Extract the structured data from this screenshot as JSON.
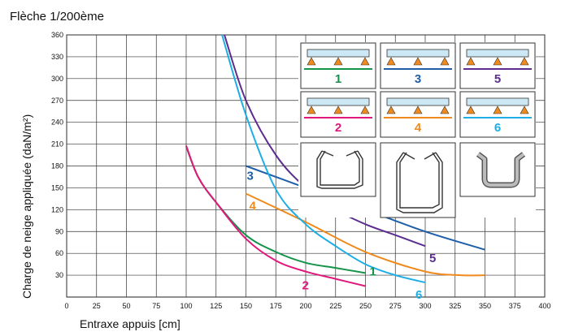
{
  "chart_data": {
    "type": "line",
    "title": "Flèche 1/200ème",
    "xlabel": "Entraxe appuis  [cm]",
    "ylabel": "Charge de neige appliquée  (daN/m²)",
    "xlim": [
      0,
      400
    ],
    "ylim": [
      0,
      360
    ],
    "xticks": [
      "0",
      "25",
      "50",
      "75",
      "100",
      "125",
      "150",
      "175",
      "200",
      "225",
      "250",
      "275",
      "300",
      "325",
      "350",
      "375",
      "400"
    ],
    "yticks": [
      "30",
      "60",
      "90",
      "120",
      "150",
      "180",
      "210",
      "240",
      "270",
      "300",
      "330",
      "360"
    ],
    "grid": true,
    "series": [
      {
        "name": "1",
        "color": "#16934a",
        "x": [
          100,
          110,
          125,
          150,
          175,
          200,
          225,
          250
        ],
        "y": [
          207,
          165,
          130,
          85,
          62,
          47,
          40,
          33
        ]
      },
      {
        "name": "2",
        "color": "#e0187c",
        "x": [
          100,
          110,
          125,
          150,
          175,
          200,
          225,
          250
        ],
        "y": [
          208,
          165,
          130,
          80,
          50,
          35,
          25,
          15
        ]
      },
      {
        "name": "3",
        "color": "#1f5fa8",
        "x": [
          150,
          200,
          250,
          300,
          350
        ],
        "y": [
          180,
          150,
          120,
          90,
          65
        ]
      },
      {
        "name": "4",
        "color": "#f08a1c",
        "x": [
          150,
          200,
          250,
          300,
          330,
          350
        ],
        "y": [
          142,
          103,
          62,
          35,
          30,
          30
        ]
      },
      {
        "name": "5",
        "color": "#5b2d8e",
        "x": [
          132,
          150,
          175,
          200,
          225,
          250,
          275,
          300
        ],
        "y": [
          360,
          270,
          195,
          150,
          120,
          100,
          85,
          70
        ]
      },
      {
        "name": "6",
        "color": "#1daee6",
        "x": [
          130,
          150,
          175,
          200,
          225,
          250,
          275,
          300
        ],
        "y": [
          360,
          250,
          148,
          100,
          70,
          45,
          30,
          20
        ]
      }
    ],
    "legend": {
      "position": "top-right",
      "entries": [
        {
          "number": "1",
          "color": "#16934a"
        },
        {
          "number": "3",
          "color": "#1f5fa8"
        },
        {
          "number": "5",
          "color": "#5b2d8e"
        },
        {
          "number": "2",
          "color": "#e0187c"
        },
        {
          "number": "4",
          "color": "#f08a1c"
        },
        {
          "number": "6",
          "color": "#1daee6"
        }
      ],
      "profiles": [
        "bent-profile-icon",
        "bent-profile-icon",
        "rounded-u-profile-icon"
      ]
    }
  }
}
